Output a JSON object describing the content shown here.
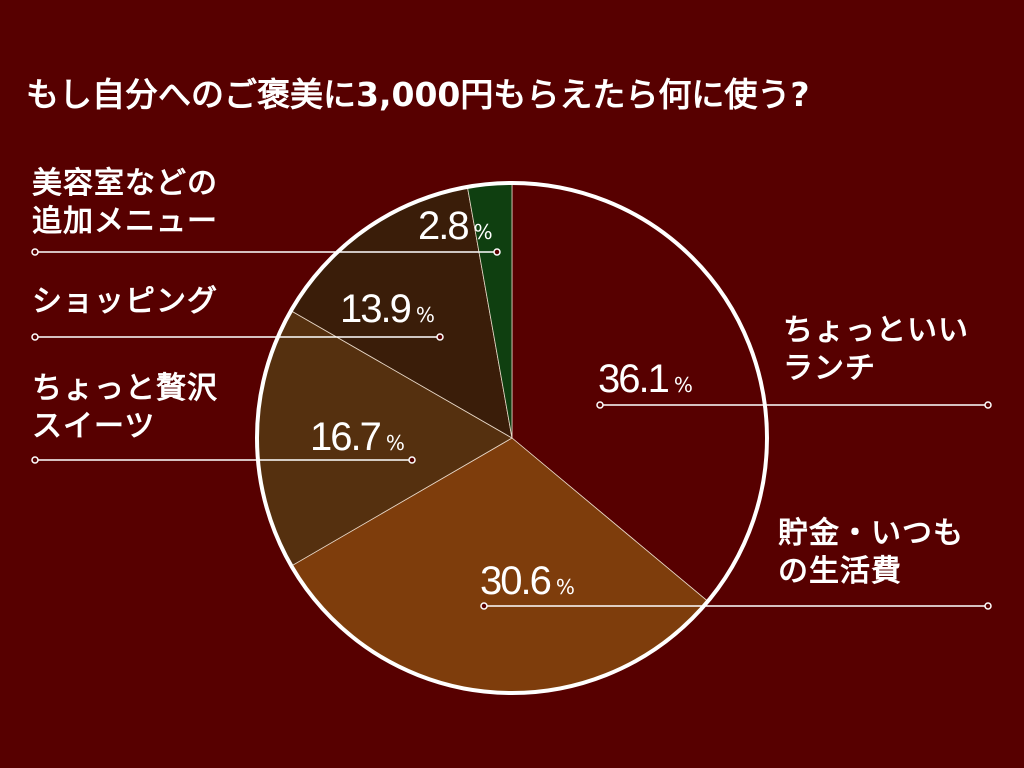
{
  "chart_data": {
    "type": "pie",
    "title": "もし自分へのご褒美に3,000円もらえたら何に使う?",
    "categories": [
      "ちょっといいランチ",
      "貯金・いつもの生活費",
      "ちょっと贅沢スイーツ",
      "ショッピング",
      "美容室などの追加メニュー"
    ],
    "values": [
      36.1,
      30.6,
      16.7,
      13.9,
      2.8
    ],
    "value_suffix": "%",
    "colors": [
      "#570000",
      "#7e3d0c",
      "#55300f",
      "#3a1d09",
      "#0f3f10"
    ]
  }
}
